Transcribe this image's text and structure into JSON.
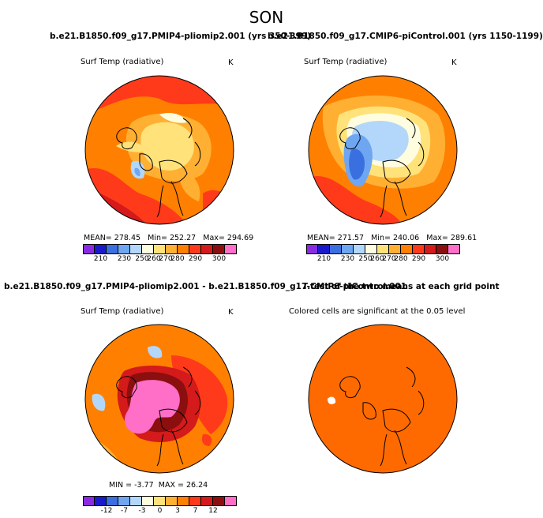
{
  "season": "SON",
  "runs": {
    "left": "b.e21.B1850.f09_g17.PMIP4-pliomip2.001 (yrs 350-399)",
    "right": "b.e21.B1850.f09_g17.CMIP6-piControl.001 (yrs 1150-1199)",
    "diff": "b.e21.B1850.f09_g17.PMIP4-pliomip2.001 - b.e21.B1850.f09_g17.CMIP6-piControl.001",
    "ttest": "T-test of the two means at each grid point"
  },
  "panels": {
    "p1": {
      "variable": "Surf Temp (radiative)",
      "units": "K",
      "mean_label": "MEAN=",
      "mean": "278.45",
      "min_label": "Min=",
      "min": "252.27",
      "max_label": "Max=",
      "max": "294.69"
    },
    "p2": {
      "variable": "Surf Temp (radiative)",
      "units": "K",
      "mean_label": "MEAN=",
      "mean": "271.57",
      "min_label": "Min=",
      "min": "240.06",
      "max_label": "Max=",
      "max": "289.61"
    },
    "p3": {
      "variable": "Surf Temp (radiative)",
      "units": "K",
      "min_label": "MIN =",
      "min": "-3.77",
      "max_label": "MAX =",
      "max": "26.24"
    },
    "p4": {
      "note": "Colored cells are significant at the 0.05 level"
    }
  },
  "colorbars": {
    "abs": {
      "colors": [
        "#8a2be2",
        "#1a1acd",
        "#3a6fe0",
        "#6fa6f2",
        "#b3d7fb",
        "#fffde0",
        "#ffe27a",
        "#ffb033",
        "#ff8000",
        "#ff3a1a",
        "#d41a1a",
        "#8b0f0f",
        "#ff6ec7"
      ],
      "labels": [
        "210",
        "230",
        "250",
        "260",
        "270",
        "280",
        "290",
        "300"
      ]
    },
    "diff": {
      "colors": [
        "#8a2be2",
        "#1a1acd",
        "#3a6fe0",
        "#6fa6f2",
        "#b3d7fb",
        "#fffde0",
        "#ffe27a",
        "#ffb033",
        "#ff8000",
        "#ff3a1a",
        "#d41a1a",
        "#8b0f0f",
        "#ff6ec7"
      ],
      "labels": [
        "-12",
        "-7",
        "-3",
        "0",
        "3",
        "7",
        "12"
      ]
    }
  }
}
